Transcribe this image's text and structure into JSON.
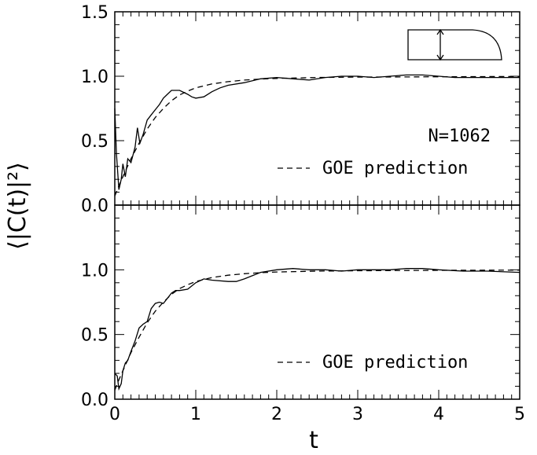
{
  "chart_data": {
    "type": "line",
    "x_label": "t",
    "y_label": "⟨|C(t)|²⟩",
    "xlim": [
      0,
      5
    ],
    "ylim": [
      0,
      1.5
    ],
    "x_ticks": [
      "0",
      "1",
      "2",
      "3",
      "4",
      "5"
    ],
    "y_ticks": [
      "0.0",
      "0.5",
      "1.0",
      "1.5"
    ],
    "panels": [
      {
        "id": "top",
        "annotation": "N=1062",
        "legend": "GOE prediction",
        "has_billiard_inset": true,
        "series": [
          {
            "style": "solid",
            "points": [
              [
                0,
                0.75
              ],
              [
                0.02,
                0.4
              ],
              [
                0.05,
                0.12
              ],
              [
                0.08,
                0.2
              ],
              [
                0.1,
                0.32
              ],
              [
                0.13,
                0.22
              ],
              [
                0.16,
                0.36
              ],
              [
                0.2,
                0.33
              ],
              [
                0.25,
                0.45
              ],
              [
                0.28,
                0.6
              ],
              [
                0.31,
                0.48
              ],
              [
                0.35,
                0.55
              ],
              [
                0.4,
                0.66
              ],
              [
                0.45,
                0.7
              ],
              [
                0.5,
                0.74
              ],
              [
                0.55,
                0.78
              ],
              [
                0.6,
                0.83
              ],
              [
                0.65,
                0.86
              ],
              [
                0.7,
                0.89
              ],
              [
                0.8,
                0.89
              ],
              [
                0.9,
                0.86
              ],
              [
                0.95,
                0.84
              ],
              [
                1.0,
                0.83
              ],
              [
                1.1,
                0.84
              ],
              [
                1.2,
                0.88
              ],
              [
                1.3,
                0.91
              ],
              [
                1.4,
                0.93
              ],
              [
                1.6,
                0.95
              ],
              [
                1.8,
                0.98
              ],
              [
                2.0,
                0.99
              ],
              [
                2.2,
                0.98
              ],
              [
                2.4,
                0.97
              ],
              [
                2.6,
                0.99
              ],
              [
                2.8,
                1.0
              ],
              [
                3.0,
                1.0
              ],
              [
                3.2,
                0.99
              ],
              [
                3.4,
                1.0
              ],
              [
                3.6,
                1.01
              ],
              [
                3.8,
                1.01
              ],
              [
                4.0,
                1.0
              ],
              [
                4.2,
                0.99
              ],
              [
                4.5,
                0.99
              ],
              [
                4.8,
                0.99
              ],
              [
                5.0,
                0.99
              ]
            ]
          },
          {
            "style": "dashed",
            "points": [
              [
                0,
                0.07
              ],
              [
                0.05,
                0.15
              ],
              [
                0.1,
                0.22
              ],
              [
                0.2,
                0.36
              ],
              [
                0.3,
                0.48
              ],
              [
                0.4,
                0.59
              ],
              [
                0.5,
                0.68
              ],
              [
                0.6,
                0.75
              ],
              [
                0.7,
                0.81
              ],
              [
                0.8,
                0.855
              ],
              [
                0.9,
                0.885
              ],
              [
                1.0,
                0.91
              ],
              [
                1.2,
                0.94
              ],
              [
                1.4,
                0.958
              ],
              [
                1.6,
                0.97
              ],
              [
                1.8,
                0.978
              ],
              [
                2.0,
                0.983
              ],
              [
                2.5,
                0.99
              ],
              [
                3.0,
                0.993
              ],
              [
                4.0,
                0.996
              ],
              [
                5.0,
                0.998
              ]
            ]
          }
        ]
      },
      {
        "id": "bottom",
        "legend": "GOE prediction",
        "series": [
          {
            "style": "solid",
            "points": [
              [
                0,
                0.2
              ],
              [
                0.03,
                0.18
              ],
              [
                0.05,
                0.08
              ],
              [
                0.08,
                0.12
              ],
              [
                0.1,
                0.22
              ],
              [
                0.13,
                0.28
              ],
              [
                0.16,
                0.3
              ],
              [
                0.2,
                0.37
              ],
              [
                0.25,
                0.45
              ],
              [
                0.3,
                0.55
              ],
              [
                0.35,
                0.58
              ],
              [
                0.4,
                0.6
              ],
              [
                0.45,
                0.7
              ],
              [
                0.5,
                0.74
              ],
              [
                0.55,
                0.75
              ],
              [
                0.6,
                0.74
              ],
              [
                0.65,
                0.78
              ],
              [
                0.7,
                0.82
              ],
              [
                0.75,
                0.84
              ],
              [
                0.8,
                0.84
              ],
              [
                0.9,
                0.85
              ],
              [
                1.0,
                0.9
              ],
              [
                1.1,
                0.93
              ],
              [
                1.2,
                0.92
              ],
              [
                1.4,
                0.91
              ],
              [
                1.5,
                0.91
              ],
              [
                1.6,
                0.93
              ],
              [
                1.8,
                0.98
              ],
              [
                2.0,
                1.0
              ],
              [
                2.2,
                1.01
              ],
              [
                2.4,
                1.0
              ],
              [
                2.6,
                1.0
              ],
              [
                2.8,
                0.99
              ],
              [
                3.0,
                1.0
              ],
              [
                3.2,
                1.0
              ],
              [
                3.4,
                1.0
              ],
              [
                3.6,
                1.01
              ],
              [
                3.8,
                1.01
              ],
              [
                4.0,
                1.0
              ],
              [
                4.3,
                0.99
              ],
              [
                4.6,
                0.99
              ],
              [
                5.0,
                0.98
              ]
            ]
          },
          {
            "style": "dashed",
            "points": [
              [
                0,
                0.07
              ],
              [
                0.05,
                0.15
              ],
              [
                0.1,
                0.22
              ],
              [
                0.2,
                0.36
              ],
              [
                0.3,
                0.48
              ],
              [
                0.4,
                0.59
              ],
              [
                0.5,
                0.68
              ],
              [
                0.6,
                0.75
              ],
              [
                0.7,
                0.81
              ],
              [
                0.8,
                0.855
              ],
              [
                0.9,
                0.885
              ],
              [
                1.0,
                0.91
              ],
              [
                1.2,
                0.94
              ],
              [
                1.4,
                0.958
              ],
              [
                1.6,
                0.97
              ],
              [
                1.8,
                0.978
              ],
              [
                2.0,
                0.983
              ],
              [
                2.5,
                0.99
              ],
              [
                3.0,
                0.993
              ],
              [
                4.0,
                0.996
              ],
              [
                5.0,
                0.998
              ]
            ]
          }
        ]
      }
    ]
  }
}
